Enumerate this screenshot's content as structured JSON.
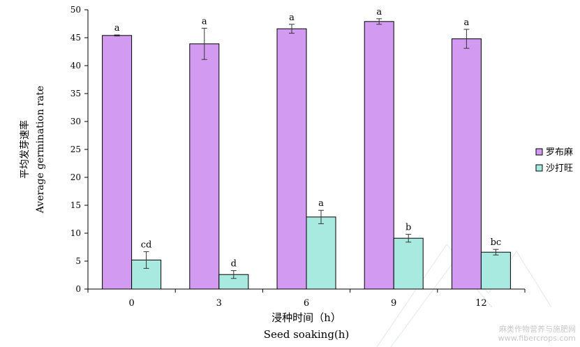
{
  "chart_data": {
    "type": "bar",
    "categories": [
      "0",
      "3",
      "6",
      "9",
      "12"
    ],
    "series": [
      {
        "name": "罗布麻",
        "color": "#d29af0",
        "values": [
          45.4,
          43.9,
          46.6,
          47.9,
          44.8
        ],
        "errors": [
          0.1,
          2.8,
          0.8,
          0.5,
          1.7
        ],
        "labels": [
          "a",
          "a",
          "a",
          "a",
          "a"
        ]
      },
      {
        "name": "沙打旺",
        "color": "#a8eadf",
        "values": [
          5.2,
          2.6,
          12.9,
          9.1,
          6.6
        ],
        "errors": [
          1.5,
          0.7,
          1.2,
          0.7,
          0.5
        ],
        "labels": [
          "cd",
          "d",
          "a",
          "b",
          "bc"
        ]
      }
    ],
    "ylim": [
      0,
      50
    ],
    "yticks": [
      "0",
      "5",
      "10",
      "15",
      "20",
      "25",
      "30",
      "35",
      "40",
      "45",
      "50"
    ],
    "ylabel_cn": "平均发芽速率",
    "ylabel_en": "Average germination rate",
    "xlabel_cn": "浸种时间（h）",
    "xlabel_en": "Seed soaking(h)",
    "legend_position": "right",
    "grid": false
  },
  "watermark": {
    "line1": "麻类作物营养与施肥网",
    "line2": "www.fibercrops.com"
  }
}
